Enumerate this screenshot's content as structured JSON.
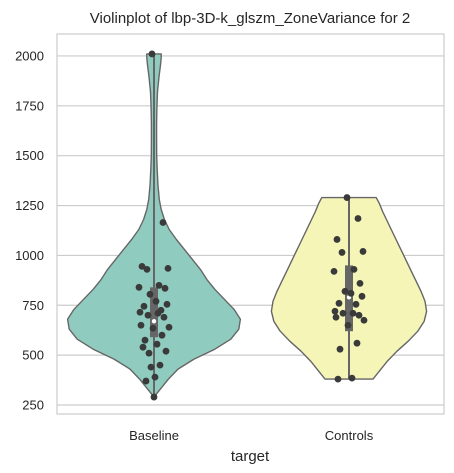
{
  "chart_data": {
    "type": "violin",
    "title": "Violinplot of lbp-3D-k_glszm_ZoneVariance for 2",
    "xlabel": "target",
    "ylabel": "",
    "categories": [
      "Baseline",
      "Controls"
    ],
    "ylim": [
      205,
      2110
    ],
    "yticks": [
      250,
      500,
      750,
      1000,
      1250,
      1500,
      1750,
      2000
    ],
    "grid": true,
    "series": [
      {
        "color": "#8fcbbf",
        "range": [
          290,
          2010
        ],
        "quartiles": [
          590,
          670,
          840
        ],
        "points": [
          2010,
          1165,
          945,
          935,
          930,
          850,
          840,
          835,
          805,
          770,
          755,
          745,
          725,
          715,
          710,
          700,
          690,
          650,
          640,
          635,
          600,
          575,
          555,
          540,
          520,
          510,
          450,
          440,
          390,
          370,
          290
        ],
        "profile": [
          [
            290,
            0.0
          ],
          [
            330,
            0.04
          ],
          [
            380,
            0.09
          ],
          [
            430,
            0.15
          ],
          [
            480,
            0.25
          ],
          [
            530,
            0.38
          ],
          [
            580,
            0.48
          ],
          [
            630,
            0.53
          ],
          [
            680,
            0.54
          ],
          [
            730,
            0.5
          ],
          [
            780,
            0.44
          ],
          [
            830,
            0.38
          ],
          [
            880,
            0.33
          ],
          [
            930,
            0.29
          ],
          [
            980,
            0.24
          ],
          [
            1030,
            0.19
          ],
          [
            1080,
            0.14
          ],
          [
            1130,
            0.095
          ],
          [
            1180,
            0.065
          ],
          [
            1230,
            0.045
          ],
          [
            1280,
            0.033
          ],
          [
            1350,
            0.025
          ],
          [
            1430,
            0.02
          ],
          [
            1500,
            0.017
          ],
          [
            1580,
            0.016
          ],
          [
            1660,
            0.016
          ],
          [
            1740,
            0.018
          ],
          [
            1820,
            0.022
          ],
          [
            1900,
            0.032
          ],
          [
            1950,
            0.04
          ],
          [
            1990,
            0.045
          ],
          [
            2010,
            0.045
          ]
        ]
      },
      {
        "color": "#f5f5b8",
        "range": [
          380,
          1290
        ],
        "quartiles": [
          620,
          790,
          950
        ],
        "points": [
          1290,
          1185,
          1080,
          1020,
          1015,
          930,
          920,
          860,
          820,
          810,
          795,
          760,
          755,
          720,
          710,
          710,
          700,
          690,
          675,
          650,
          560,
          530,
          385,
          380
        ],
        "profile": [
          [
            380,
            0.15
          ],
          [
            400,
            0.17
          ],
          [
            430,
            0.2
          ],
          [
            470,
            0.24
          ],
          [
            520,
            0.3
          ],
          [
            570,
            0.37
          ],
          [
            620,
            0.43
          ],
          [
            670,
            0.47
          ],
          [
            720,
            0.485
          ],
          [
            770,
            0.475
          ],
          [
            820,
            0.45
          ],
          [
            870,
            0.42
          ],
          [
            920,
            0.39
          ],
          [
            970,
            0.36
          ],
          [
            1020,
            0.33
          ],
          [
            1070,
            0.3
          ],
          [
            1120,
            0.27
          ],
          [
            1170,
            0.24
          ],
          [
            1220,
            0.21
          ],
          [
            1260,
            0.19
          ],
          [
            1290,
            0.17
          ]
        ]
      }
    ]
  }
}
